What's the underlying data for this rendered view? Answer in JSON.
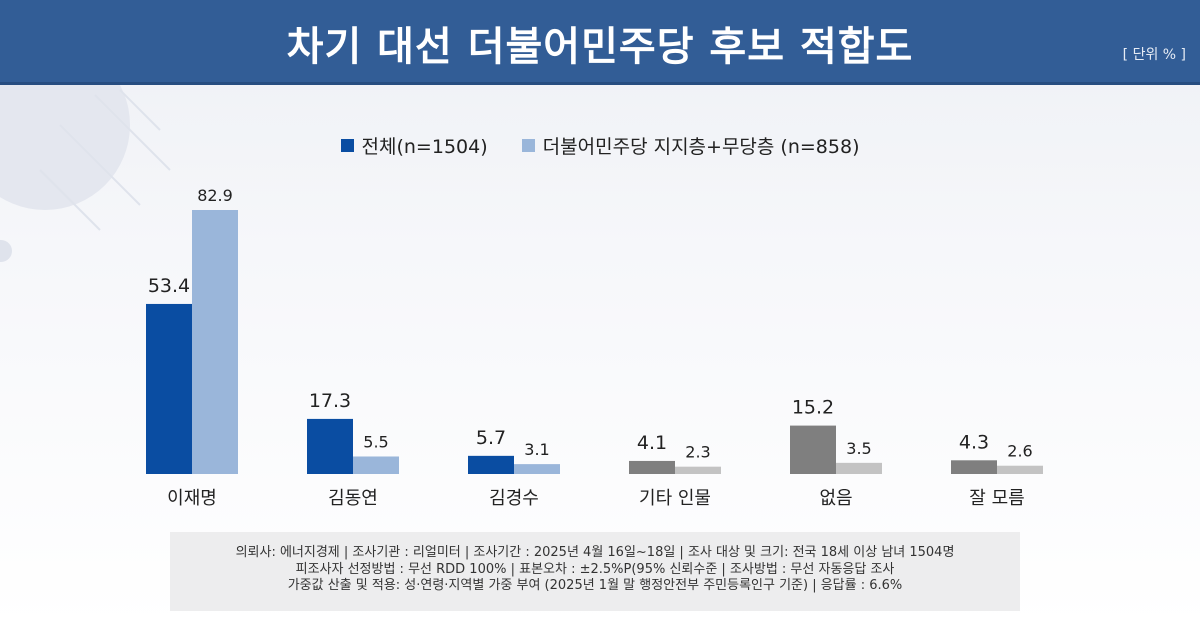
{
  "header": {
    "title": "차기 대선 더불어민주당 후보 적합도",
    "unit": "[ 단위 % ]"
  },
  "colors": {
    "overall": "#0a4da2",
    "supporters": "#9ab6da",
    "overall_other": "#7f7f7f",
    "supporters_other": "#c3c3c3"
  },
  "chart_data": {
    "type": "bar",
    "title": "차기 대선 더불어민주당 후보 적합도",
    "unit": "%",
    "categories": [
      "이재명",
      "김동연",
      "김경수",
      "기타 인물",
      "없음",
      "잘 모름"
    ],
    "series": [
      {
        "name": "전체(n=1504)",
        "values": [
          53.4,
          17.3,
          5.7,
          4.1,
          15.2,
          4.3
        ]
      },
      {
        "name": "더불어민주당 지지층+무당층 (n=858)",
        "values": [
          82.9,
          5.5,
          3.1,
          2.3,
          3.5,
          2.6
        ]
      }
    ],
    "ylim": [
      0,
      82.9
    ],
    "legend": "top-center",
    "grid": false
  },
  "footer": {
    "line1": "의뢰사: 에너지경제 | 조사기관 : 리얼미터  |  조사기간 : 2025년 4월 16일~18일 | 조사 대상 및 크기: 전국 18세 이상 남녀 1504명",
    "line2": "피조사자 선정방법 : 무선 RDD 100% | 표본오차 : ±2.5%P(95% 신뢰수준 | 조사방법 : 무선 자동응답 조사",
    "line3": "가중값 산출 및 적용: 성·연령·지역별 가중 부여 (2025년 1월 말 행정안전부 주민등록인구 기준) | 응답률 : 6.6%"
  }
}
